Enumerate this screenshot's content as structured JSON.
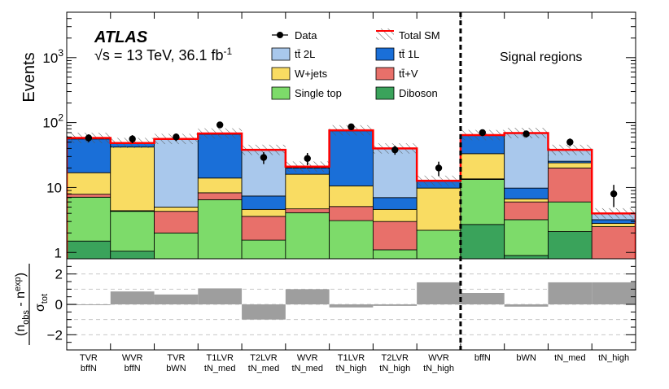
{
  "chart_data": {
    "type": "stacked-bar",
    "top_panel": {
      "ylabel": "Events",
      "yscale": "log",
      "ylim": [
        0.8,
        5000
      ],
      "y_ticks": [
        {
          "v": 1,
          "base": "1",
          "exp": ""
        },
        {
          "v": 10,
          "base": "10",
          "exp": ""
        },
        {
          "v": 100,
          "base": "10",
          "exp": "2"
        },
        {
          "v": 1000,
          "base": "10",
          "exp": "3"
        }
      ]
    },
    "ratio_panel": {
      "ylabel_num": "n",
      "ylabel_num_sub1": "obs",
      "ylabel_minus": " - n",
      "ylabel_num_sub2": "exp",
      "ylabel_den": "σ",
      "ylabel_den_sub": "tot",
      "ylim": [
        -3,
        3
      ],
      "y_ticks": [
        "2",
        "0",
        "−2"
      ],
      "values": [
        -0.05,
        0.85,
        0.65,
        1.05,
        -1.0,
        1.0,
        -0.2,
        -0.1,
        1.45,
        0.75,
        -0.15,
        1.45,
        1.45
      ]
    },
    "atlas": {
      "label": "ATLAS",
      "energy": "√s = 13 TeV, 36.1 fb",
      "lumi_exp": "-1"
    },
    "signal_label": "Signal regions",
    "divider_after_index": 8,
    "categories": [
      [
        "TVR",
        "bffN"
      ],
      [
        "WVR",
        "bffN"
      ],
      [
        "TVR",
        "bWN"
      ],
      [
        "T1LVR",
        "tN_med"
      ],
      [
        "T2LVR",
        "tN_med"
      ],
      [
        "WVR",
        "tN_med"
      ],
      [
        "T1LVR",
        "tN_high"
      ],
      [
        "T2LVR",
        "tN_high"
      ],
      [
        "WVR",
        "tN_high"
      ],
      [
        "bffN",
        ""
      ],
      [
        "bWN",
        ""
      ],
      [
        "tN_med",
        ""
      ],
      [
        "tN_high",
        ""
      ]
    ],
    "legend": {
      "data": "Data",
      "total": "Total SM",
      "ttbar2l": "tt̄ 2L",
      "ttbar1l": "tt̄ 1L",
      "wjets": "W+jets",
      "ttv": "tt̄+V",
      "singletop": "Single top",
      "diboson": "Diboson"
    },
    "colors": {
      "diboson": "#3aa35b",
      "singletop": "#7ddb6a",
      "ttv": "#e8706a",
      "wjets": "#f9dc62",
      "ttbar1l": "#1a6fd8",
      "ttbar2l": "#a9c8ec",
      "total": "#ff0000",
      "band": "#666666",
      "ratio": "#9e9e9e"
    },
    "stack_order": [
      "diboson",
      "singletop",
      "ttv",
      "wjets",
      "ttbar1l",
      "ttbar2l"
    ],
    "series": [
      {
        "name": "diboson",
        "values": [
          1.5,
          1.05,
          0,
          0,
          0,
          0,
          0,
          0,
          0,
          2.7,
          0.9,
          2.1,
          0
        ]
      },
      {
        "name": "singletop",
        "values": [
          5.6,
          3.25,
          2.0,
          6.5,
          1.55,
          4.1,
          3.1,
          1.1,
          2.2,
          10.6,
          2.3,
          3.9,
          0.6
        ]
      },
      {
        "name": "ttv",
        "values": [
          0.8,
          0.1,
          2.3,
          1.8,
          2.05,
          0.6,
          2.0,
          1.9,
          0,
          0.3,
          2.8,
          14.0,
          1.9
        ]
      },
      {
        "name": "wjets",
        "values": [
          9.0,
          37.6,
          0.7,
          5.7,
          1.0,
          11.3,
          5.5,
          1.6,
          7.6,
          19.6,
          0.7,
          4.0,
          0.3
        ]
      },
      {
        "name": "ttbar1l",
        "values": [
          39.0,
          5.5,
          0,
          52.0,
          2.8,
          4.0,
          64.0,
          2.4,
          2.9,
          31.0,
          3.1,
          1.4,
          0.4
        ]
      },
      {
        "name": "ttbar2l",
        "values": [
          2.1,
          1.0,
          51.0,
          2.0,
          30.6,
          1.0,
          1.4,
          33.0,
          0,
          0,
          59.2,
          12.6,
          0.8
        ]
      }
    ],
    "total_sm": [
      58,
      48.5,
      56,
      68,
      38,
      21,
      76,
      40,
      12.7,
      64.2,
      69,
      38,
      4.0
    ],
    "data_points": [
      58,
      56,
      60,
      92,
      29,
      28,
      86,
      38,
      20,
      70,
      67,
      50,
      8
    ],
    "data_errors": [
      8,
      8,
      8,
      10,
      6,
      6,
      9,
      6,
      5,
      8,
      8,
      7,
      3
    ]
  }
}
